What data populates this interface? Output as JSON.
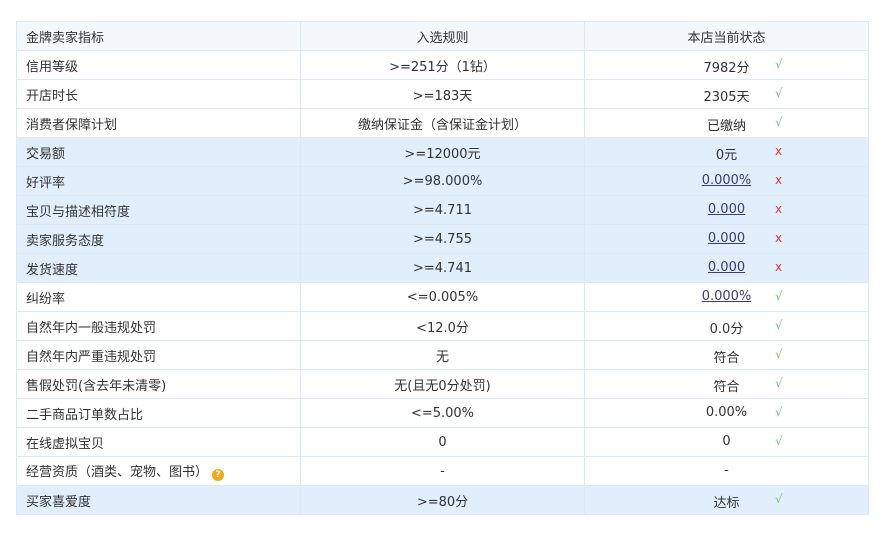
{
  "header": {
    "indicator": "金牌卖家指标",
    "rule": "入选规则",
    "status": "本店当前状态"
  },
  "rows": [
    {
      "indicator": "信用等级",
      "rule": ">=251分（1钻）",
      "status": "7982分",
      "pass": true,
      "link": false,
      "highlight": false
    },
    {
      "indicator": "开店时长",
      "rule": ">=183天",
      "status": "2305天",
      "pass": true,
      "link": false,
      "highlight": false
    },
    {
      "indicator": "消费者保障计划",
      "rule": "缴纳保证金（含保证金计划）",
      "status": "已缴纳",
      "pass": true,
      "link": false,
      "highlight": false
    },
    {
      "indicator": "交易额",
      "rule": ">=12000元",
      "status": "0元",
      "pass": false,
      "link": false,
      "highlight": true
    },
    {
      "indicator": "好评率",
      "rule": ">=98.000%",
      "status": "0.000%",
      "pass": false,
      "link": true,
      "highlight": true
    },
    {
      "indicator": "宝贝与描述相符度",
      "rule": ">=4.711",
      "status": "0.000",
      "pass": false,
      "link": true,
      "highlight": true
    },
    {
      "indicator": "卖家服务态度",
      "rule": ">=4.755",
      "status": "0.000",
      "pass": false,
      "link": true,
      "highlight": true
    },
    {
      "indicator": "发货速度",
      "rule": ">=4.741",
      "status": "0.000",
      "pass": false,
      "link": true,
      "highlight": true
    },
    {
      "indicator": "纠纷率",
      "rule": "<=0.005%",
      "status": "0.000%",
      "pass": true,
      "link": true,
      "highlight": false
    },
    {
      "indicator": "自然年内一般违规处罚",
      "rule": "<12.0分",
      "status": "0.0分",
      "pass": true,
      "link": false,
      "highlight": false
    },
    {
      "indicator": "自然年内严重违规处罚",
      "rule": "无",
      "status": "符合",
      "pass": true,
      "link": false,
      "highlight": false
    },
    {
      "indicator": "售假处罚(含去年未清零)",
      "rule": "无(且无0分处罚)",
      "status": "符合",
      "pass": true,
      "link": false,
      "highlight": false
    },
    {
      "indicator": "二手商品订单数占比",
      "rule": "<=5.00%",
      "status": "0.00%",
      "pass": true,
      "link": false,
      "highlight": false
    },
    {
      "indicator": "在线虚拟宝贝",
      "rule": "0",
      "status": "0",
      "pass": true,
      "link": false,
      "highlight": false
    },
    {
      "indicator": "经营资质（酒类、宠物、图书）",
      "rule": "-",
      "status": "-",
      "pass": null,
      "link": false,
      "highlight": false,
      "help": true
    },
    {
      "indicator": "买家喜爱度",
      "rule": ">=80分",
      "status": "达标",
      "pass": true,
      "link": false,
      "highlight": true
    }
  ],
  "marks": {
    "pass": "√",
    "fail": "x"
  },
  "help_icon": "?",
  "colors": {
    "pass": "#7dc07d",
    "fail": "#e33333",
    "highlight": "#e1eefc",
    "link": "#3b3b7e"
  }
}
